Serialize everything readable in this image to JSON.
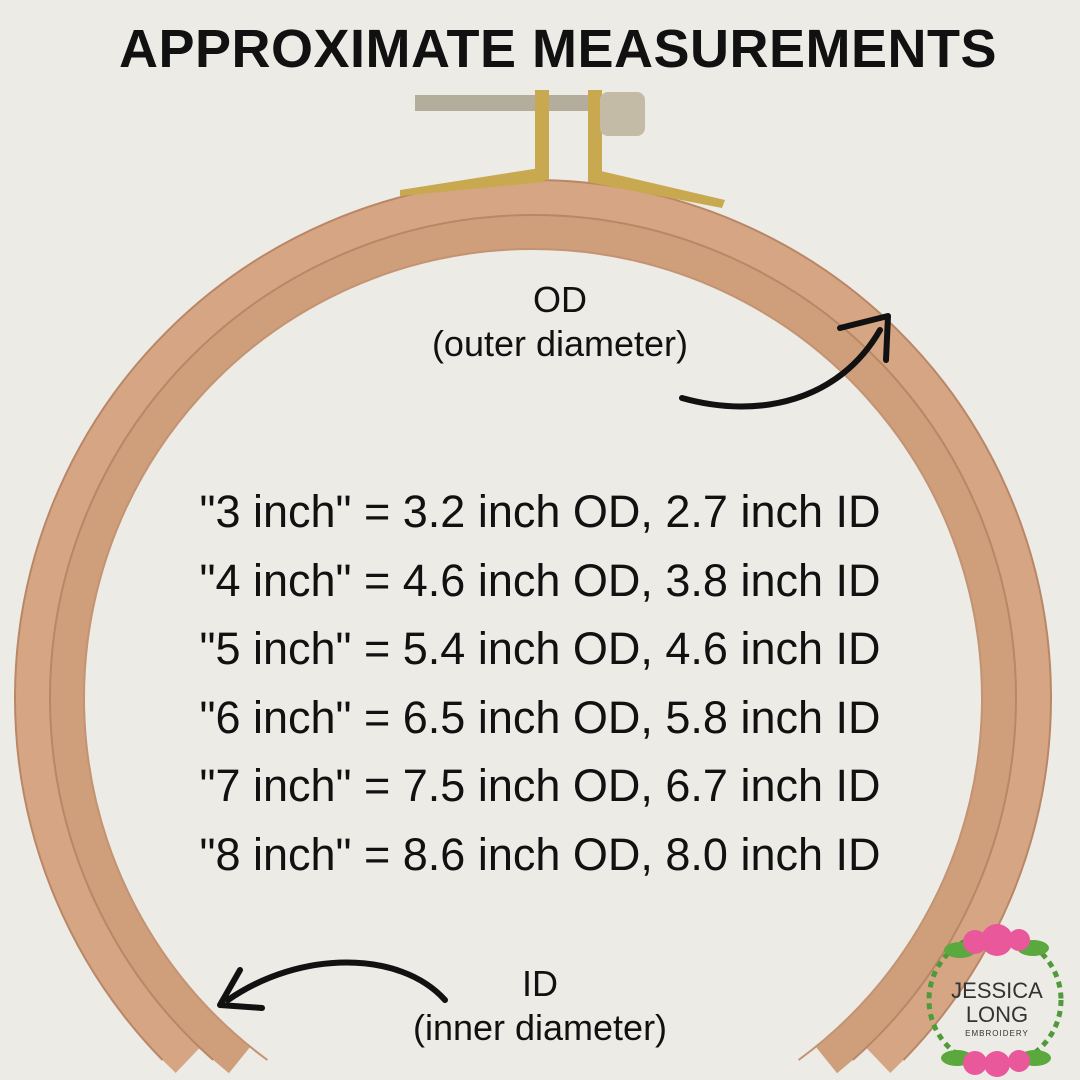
{
  "title": "APPROXIMATE MEASUREMENTS",
  "od_label": {
    "abbr": "OD",
    "full": "(outer diameter)"
  },
  "id_label": {
    "abbr": "ID",
    "full": "(inner diameter)"
  },
  "measurements": [
    "\"3 inch\" = 3.2 inch OD, 2.7 inch ID",
    "\"4 inch\" = 4.6 inch OD, 3.8 inch ID",
    "\"5 inch\" = 5.4 inch OD, 4.6 inch ID",
    "\"6 inch\" = 6.5 inch OD, 5.8 inch ID",
    "\"7 inch\" = 7.5 inch OD, 6.7 inch ID",
    "\"8 inch\" = 8.6 inch OD, 8.0 inch ID"
  ],
  "logo": {
    "line1": "JESSICA",
    "line2": "LONG",
    "line3": "EMBROIDERY"
  },
  "colors": {
    "wood": "#d6a684",
    "background": "#edebe6",
    "rose": "#e9589a",
    "leaf": "#4f9a3a"
  }
}
